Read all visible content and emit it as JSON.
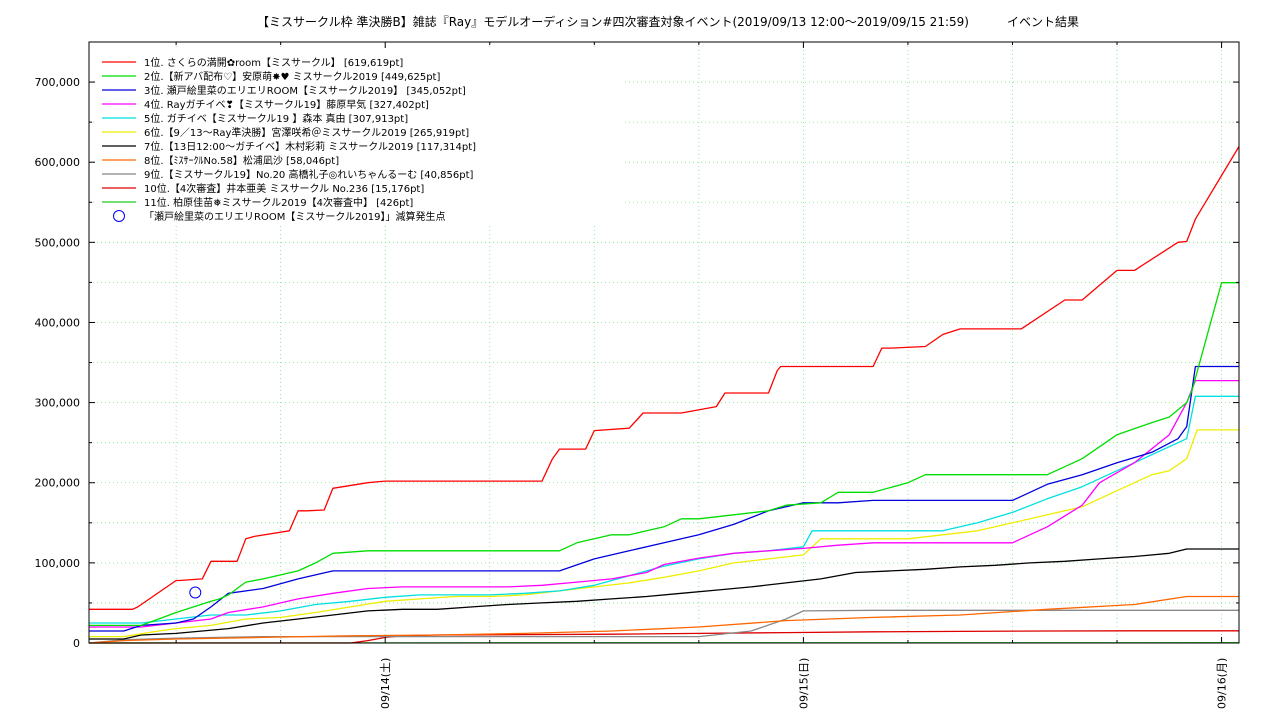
{
  "chart_data": {
    "type": "line",
    "title": "【ミスサークル枠 準決勝B】雑誌『Ray』モデルオーディション#四次審査対象イベント(2019/09/13 12:00～2019/09/15 21:59)",
    "subtitle": "イベント結果",
    "xlabel": "",
    "ylabel": "",
    "x_unit": "hours since 2019/09/13 12:00",
    "xlim": [
      -5,
      61
    ],
    "ylim": [
      0,
      750000
    ],
    "y_ticks": [
      "0",
      "100,000",
      "200,000",
      "300,000",
      "400,000",
      "500,000",
      "600,000",
      "700,000"
    ],
    "y_tick_values": [
      0,
      100000,
      200000,
      300000,
      400000,
      500000,
      600000,
      700000
    ],
    "x_ticks": [
      "09/14(土)",
      "09/15(日)",
      "09/16(月)"
    ],
    "x_tick_values": [
      12,
      36,
      60
    ],
    "grid": true,
    "legend_position": "top-left",
    "series": [
      {
        "name": "1位. さくらの満開✿room【ミスサークル】 [619,619pt]",
        "color": "#ff0000",
        "x": [
          -5,
          -2.5,
          -2.2,
          0,
          0.2,
          1.5,
          2,
          2.5,
          3.5,
          4,
          4.5,
          6.5,
          7,
          7.5,
          8.5,
          9,
          11,
          12,
          13,
          16,
          21,
          21.6,
          22,
          23.5,
          24,
          26,
          26.8,
          28,
          29,
          31,
          31.5,
          34,
          34.5,
          34.7,
          35,
          40,
          40.5,
          41,
          43,
          44,
          45,
          46.5,
          47,
          48,
          48.5,
          51,
          51.5,
          52,
          54,
          54.5,
          55,
          57.5,
          58,
          58.5,
          61
        ],
        "y": [
          42000,
          42000,
          45000,
          78000,
          78000,
          80000,
          102000,
          102000,
          102000,
          130000,
          133000,
          140000,
          165000,
          165000,
          166000,
          193000,
          200000,
          202000,
          202000,
          202000,
          202000,
          230000,
          242000,
          242000,
          265000,
          268000,
          287000,
          287000,
          287000,
          295000,
          312000,
          312000,
          340000,
          345000,
          345000,
          345000,
          368000,
          368000,
          370000,
          385000,
          392000,
          392000,
          392000,
          392000,
          392000,
          428000,
          428000,
          428000,
          465000,
          465000,
          465000,
          500000,
          501000,
          529000,
          619619
        ]
      },
      {
        "name": "2位.【新アバ配布♡】安原萌✸♥ ミスサークル2019 [449,625pt]",
        "color": "#00dd00",
        "x": [
          -5,
          -2,
          -1,
          0,
          2,
          2.5,
          3,
          4,
          5,
          7,
          8,
          9,
          11,
          13,
          15,
          17,
          20,
          22,
          23,
          25,
          26,
          28,
          29,
          30,
          32,
          34,
          35,
          37,
          38,
          40,
          42,
          43,
          44,
          45,
          46,
          47,
          48,
          49,
          50,
          51,
          52,
          54,
          56,
          57,
          58,
          58.3,
          60,
          61
        ],
        "y": [
          22000,
          22000,
          30000,
          38000,
          52000,
          55000,
          60000,
          76000,
          80000,
          90000,
          100000,
          112000,
          115000,
          115000,
          115000,
          115000,
          115000,
          115000,
          125000,
          135000,
          135000,
          145000,
          155000,
          155000,
          160000,
          165000,
          172000,
          175000,
          188000,
          188000,
          200000,
          210000,
          210000,
          210000,
          210000,
          210000,
          210000,
          210000,
          210000,
          220000,
          230000,
          260000,
          275000,
          282000,
          300000,
          315000,
          449625,
          449625
        ]
      },
      {
        "name": "3位. 瀬戸絵里菜のエリエリROOM【ミスサークル2019】 [345,052pt]",
        "color": "#0000dd",
        "x": [
          -5,
          -3,
          -2,
          0,
          1,
          2,
          3,
          5,
          7,
          9,
          10,
          11,
          13,
          15,
          17,
          19,
          21,
          22,
          24,
          26,
          28,
          30,
          32,
          34,
          36,
          38,
          40,
          44,
          48,
          50,
          52,
          54,
          56,
          57.5,
          58,
          58.5,
          61
        ],
        "y": [
          15000,
          15000,
          22000,
          25000,
          30000,
          45000,
          62000,
          68000,
          80000,
          90000,
          90000,
          90000,
          90000,
          90000,
          90000,
          90000,
          90000,
          90000,
          105000,
          115000,
          125000,
          135000,
          148000,
          165000,
          175000,
          175000,
          178000,
          178000,
          178000,
          198000,
          210000,
          225000,
          238000,
          255000,
          270000,
          345052,
          345052
        ]
      },
      {
        "name": "4位. Rayガチイベ❣【ミスサークル19】藤原早気 [327,402pt]",
        "color": "#ff00ff",
        "x": [
          -5,
          -2,
          0,
          2,
          3,
          5,
          7,
          9,
          11,
          13,
          15,
          17,
          19,
          21,
          23,
          25,
          27,
          28,
          30,
          32,
          34,
          36,
          38,
          40,
          42,
          44,
          46,
          48,
          50,
          52,
          53,
          55,
          57,
          58,
          58.5,
          61
        ],
        "y": [
          20000,
          20000,
          25000,
          30000,
          38000,
          45000,
          55000,
          62000,
          68000,
          70000,
          70000,
          70000,
          70000,
          72000,
          76000,
          80000,
          88000,
          98000,
          106000,
          112000,
          115000,
          118000,
          122000,
          125000,
          125000,
          125000,
          125000,
          125000,
          145000,
          172000,
          200000,
          225000,
          260000,
          300000,
          327402,
          327402
        ]
      },
      {
        "name": "5位. ガチイベ【ミスサークル19 】森本 真由 [307,913pt]",
        "color": "#00e0e0",
        "x": [
          -5,
          -2,
          0,
          2,
          4,
          6,
          8,
          10,
          12,
          14,
          16,
          18,
          20,
          22,
          24,
          26,
          28,
          30,
          32,
          34,
          36,
          36.5,
          38,
          40,
          42,
          44,
          46,
          48,
          50,
          52,
          54,
          56,
          58,
          58.5,
          61
        ],
        "y": [
          25000,
          25000,
          30000,
          35000,
          35000,
          40000,
          48000,
          52000,
          57000,
          60000,
          60000,
          60000,
          62000,
          65000,
          72000,
          84000,
          96000,
          105000,
          112000,
          115000,
          120000,
          140000,
          140000,
          140000,
          140000,
          140000,
          150000,
          163000,
          180000,
          195000,
          215000,
          235000,
          255000,
          307913,
          307913
        ]
      },
      {
        "name": "6位.【9／13～Ray準決勝】宮澤咲希＠ミスサークル2019 [265,919pt]",
        "color": "#eeee00",
        "x": [
          -5,
          -3,
          -1,
          0,
          2,
          4,
          6,
          8,
          10,
          12,
          14,
          16,
          18,
          20,
          22,
          24,
          26,
          28,
          30,
          32,
          34,
          36,
          37,
          40,
          42,
          44,
          46,
          48,
          50,
          52,
          54,
          56,
          57,
          58,
          58.6,
          61
        ],
        "y": [
          8000,
          8000,
          15000,
          18000,
          22000,
          30000,
          32000,
          38000,
          45000,
          52000,
          55000,
          58000,
          58000,
          60000,
          65000,
          70000,
          75000,
          82000,
          90000,
          100000,
          105000,
          110000,
          130000,
          130000,
          130000,
          135000,
          140000,
          150000,
          160000,
          170000,
          190000,
          210000,
          215000,
          230000,
          265919,
          265919
        ]
      },
      {
        "name": "7位.【13日12:00～ガチイベ】木村彩莉 ミスサークル2019 [117,314pt]",
        "color": "#000000",
        "x": [
          -5,
          -3,
          -2,
          0,
          3,
          5,
          7,
          9,
          11,
          13,
          15,
          17,
          19,
          21,
          23,
          25,
          27,
          29,
          31,
          33,
          35,
          37,
          39,
          41,
          43,
          45,
          47,
          49,
          51,
          53,
          55,
          57,
          58,
          61
        ],
        "y": [
          5000,
          5000,
          10000,
          12000,
          18000,
          25000,
          30000,
          35000,
          40000,
          42000,
          42000,
          45000,
          48000,
          50000,
          52000,
          55000,
          58000,
          62000,
          66000,
          70000,
          75000,
          80000,
          88000,
          90000,
          92000,
          95000,
          97000,
          100000,
          102000,
          105000,
          108000,
          112000,
          117314,
          117314
        ]
      },
      {
        "name": "8位.【ﾐｽｻｰｸﾙNo.58】松浦凪沙 [58,046pt]",
        "color": "#ff6600",
        "x": [
          -5,
          -3,
          0,
          5,
          10,
          15,
          20,
          25,
          30,
          35,
          40,
          45,
          50,
          55,
          58,
          61
        ],
        "y": [
          0,
          3000,
          5000,
          7000,
          9000,
          10000,
          12000,
          15000,
          20000,
          28000,
          32000,
          35000,
          42000,
          48000,
          58046,
          58046
        ]
      },
      {
        "name": "9位.【ミスサークル19】No.20 高橋礼子◎れいちゃんるーむ [40,856pt]",
        "color": "#888888",
        "x": [
          -5,
          -3,
          0,
          5,
          10,
          15,
          20,
          25,
          30,
          33,
          35,
          36,
          40,
          45,
          50,
          55,
          61
        ],
        "y": [
          0,
          4000,
          6000,
          8000,
          8000,
          8000,
          8000,
          8000,
          8000,
          15000,
          30000,
          40000,
          40856,
          40856,
          40856,
          40856,
          40856
        ]
      },
      {
        "name": "10位.【4次審査】井本亜美 ミスサークル No.236 [15,176pt]",
        "color": "#dd0000",
        "x": [
          -5,
          5,
          10,
          11,
          12,
          13,
          15,
          20,
          25,
          30,
          35,
          40,
          45,
          50,
          55,
          61
        ],
        "y": [
          0,
          0,
          0,
          3000,
          7000,
          9000,
          10000,
          10500,
          11000,
          12000,
          13000,
          14000,
          14500,
          15000,
          15176,
          15176
        ]
      },
      {
        "name": "11位. 柏原佳苗❅ミスサークル2019【4次審査中】 [426pt]",
        "color": "#22cc22",
        "x": [
          -5,
          0,
          20,
          40,
          61
        ],
        "y": [
          0,
          100,
          200,
          300,
          426
        ]
      }
    ],
    "annotation": {
      "label": "「瀬戸絵里菜のエリエリROOM【ミスサークル2019】」減算発生点",
      "x": 1.1,
      "y": 63000,
      "color": "#0000ff"
    }
  }
}
